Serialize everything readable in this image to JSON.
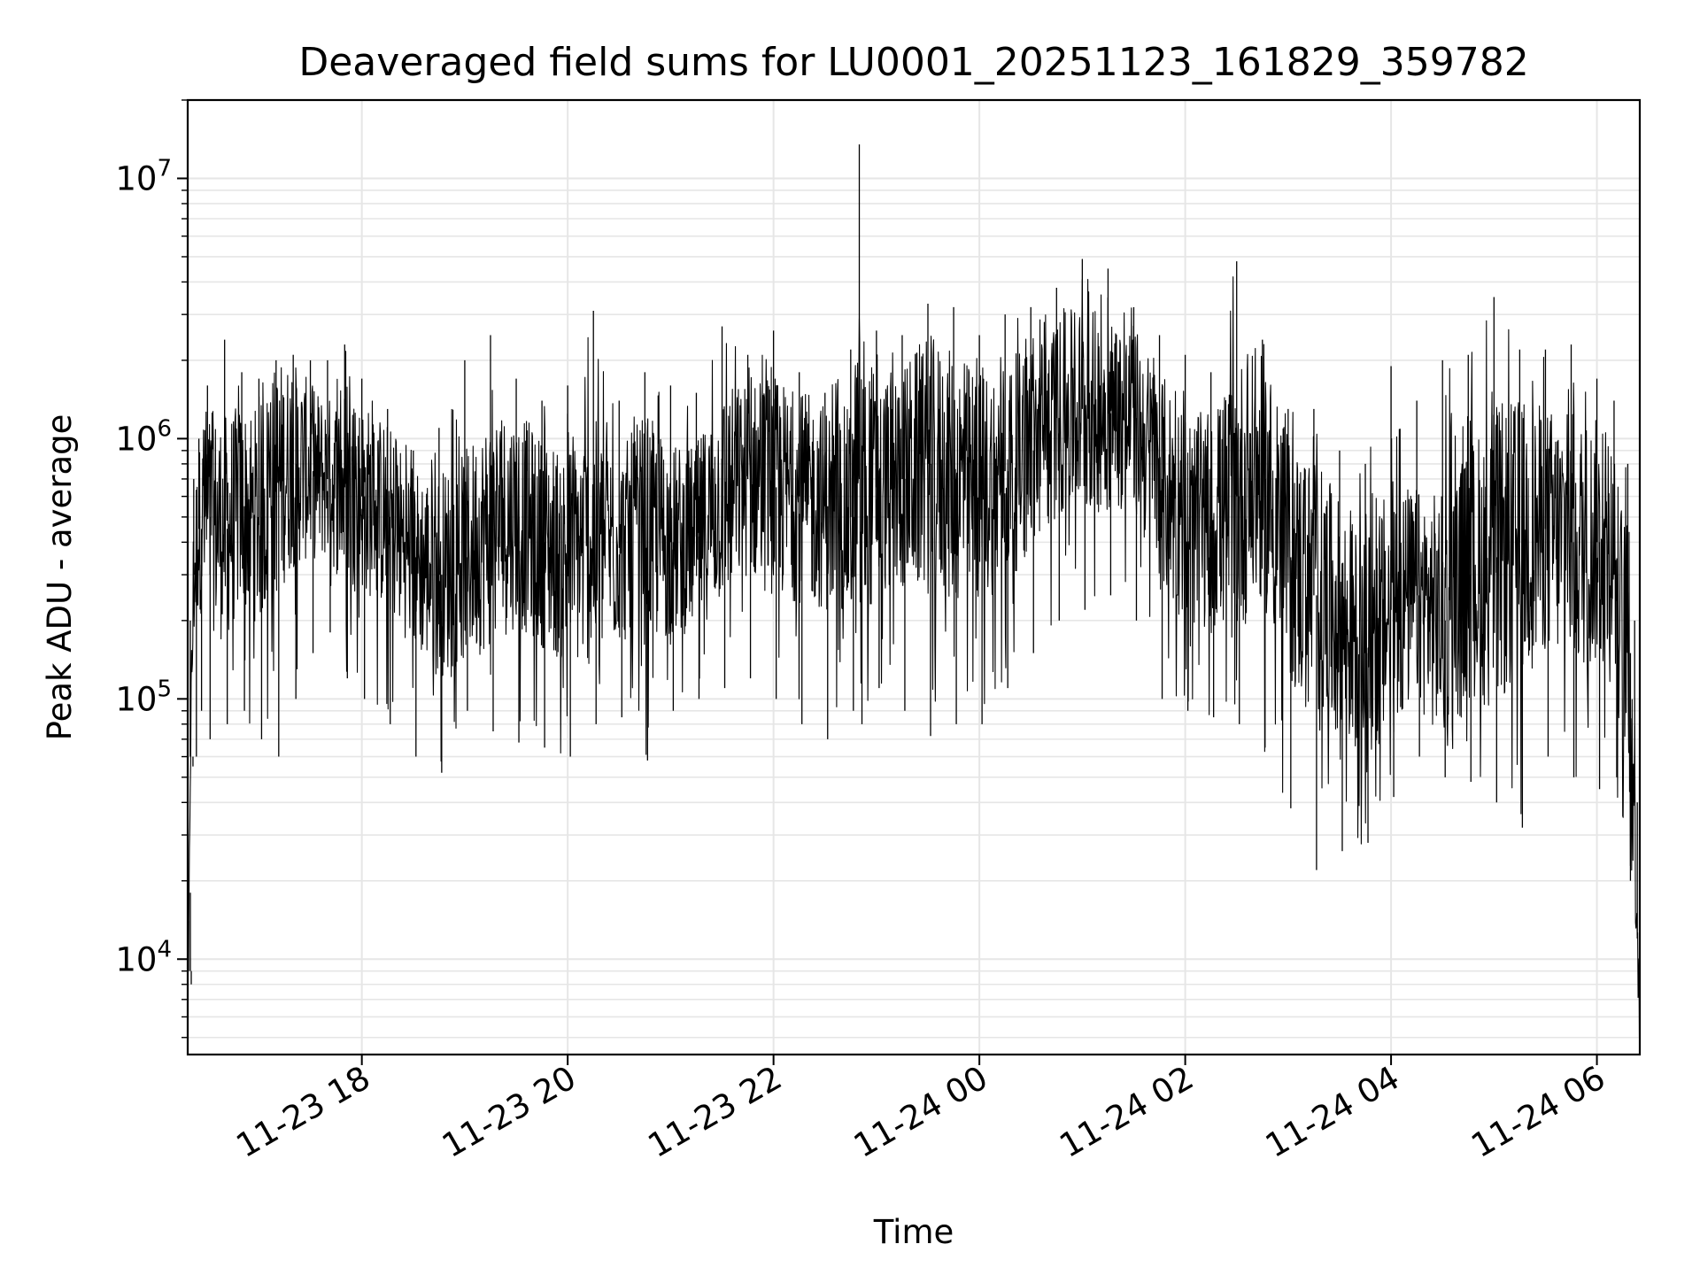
{
  "chart_data": {
    "type": "line",
    "title": "Deaveraged field sums for LU0001_20251123_161829_359782",
    "xlabel": "Time",
    "ylabel": "Peak ADU - average",
    "yscale": "log",
    "ylim": [
      4300,
      20000000
    ],
    "xlim": [
      "2025-11-23 16:18:29",
      "2025-11-24 06:25:00"
    ],
    "grid": true,
    "line_color": "#000000",
    "x_ticks": [
      {
        "t": "2025-11-23 18:00",
        "label": "11-23 18"
      },
      {
        "t": "2025-11-23 20:00",
        "label": "11-23 20"
      },
      {
        "t": "2025-11-23 22:00",
        "label": "11-23 22"
      },
      {
        "t": "2025-11-24 00:00",
        "label": "11-24 00"
      },
      {
        "t": "2025-11-24 02:00",
        "label": "11-24 02"
      },
      {
        "t": "2025-11-24 04:00",
        "label": "11-24 04"
      },
      {
        "t": "2025-11-24 06:00",
        "label": "11-24 06"
      }
    ],
    "y_ticks": [
      {
        "value": 10000,
        "base": "10",
        "exp": "4"
      },
      {
        "value": 100000,
        "base": "10",
        "exp": "5"
      },
      {
        "value": 1000000,
        "base": "10",
        "exp": "6"
      },
      {
        "value": 10000000,
        "base": "10",
        "exp": "7"
      }
    ],
    "series": [
      {
        "x": [
          "2025-11-23 16:18:29",
          "2025-11-23 16:19:00",
          "2025-11-23 16:20:00",
          "2025-11-23 16:22:00",
          "2025-11-23 16:25:00",
          "2025-11-23 16:30:00",
          "2025-11-23 16:40:00",
          "2025-11-23 16:50:00",
          "2025-11-23 17:00:00",
          "2025-11-23 17:10:00",
          "2025-11-23 17:20:00",
          "2025-11-23 17:30:00",
          "2025-11-23 17:40:00",
          "2025-11-23 17:50:00",
          "2025-11-23 18:00:00",
          "2025-11-23 18:15:00",
          "2025-11-23 18:30:00",
          "2025-11-23 18:45:00",
          "2025-11-23 19:00:00",
          "2025-11-23 19:15:00",
          "2025-11-23 19:30:00",
          "2025-11-23 19:45:00",
          "2025-11-23 20:00:00",
          "2025-11-23 20:15:00",
          "2025-11-23 20:30:00",
          "2025-11-23 20:45:00",
          "2025-11-23 21:00:00",
          "2025-11-23 21:15:00",
          "2025-11-23 21:30:00",
          "2025-11-23 21:45:00",
          "2025-11-23 22:00:00",
          "2025-11-23 22:15:00",
          "2025-11-23 22:30:00",
          "2025-11-23 22:45:00",
          "2025-11-23 22:50:00",
          "2025-11-23 23:00:00",
          "2025-11-23 23:15:00",
          "2025-11-23 23:30:00",
          "2025-11-23 23:45:00",
          "2025-11-24 00:00:00",
          "2025-11-24 00:15:00",
          "2025-11-24 00:30:00",
          "2025-11-24 00:45:00",
          "2025-11-24 01:00:00",
          "2025-11-24 01:15:00",
          "2025-11-24 01:30:00",
          "2025-11-24 01:45:00",
          "2025-11-24 02:00:00",
          "2025-11-24 02:15:00",
          "2025-11-24 02:30:00",
          "2025-11-24 02:45:00",
          "2025-11-24 03:00:00",
          "2025-11-24 03:15:00",
          "2025-11-24 03:30:00",
          "2025-11-24 03:45:00",
          "2025-11-24 04:00:00",
          "2025-11-24 04:15:00",
          "2025-11-24 04:30:00",
          "2025-11-24 04:45:00",
          "2025-11-24 05:00:00",
          "2025-11-24 05:15:00",
          "2025-11-24 05:30:00",
          "2025-11-24 05:45:00",
          "2025-11-24 06:00:00",
          "2025-11-24 06:10:00",
          "2025-11-24 06:18:00",
          "2025-11-24 06:22:00",
          "2025-11-24 06:25:00"
        ],
        "y": [
          18000,
          9000,
          60000,
          300000,
          450000,
          500000,
          450000,
          550000,
          500000,
          700000,
          800000,
          750000,
          700000,
          650000,
          600000,
          500000,
          350000,
          300000,
          350000,
          450000,
          500000,
          400000,
          350000,
          400000,
          380000,
          450000,
          400000,
          420000,
          600000,
          700000,
          650000,
          600000,
          550000,
          500000,
          700000,
          650000,
          700000,
          800000,
          700000,
          650000,
          750000,
          900000,
          1200000,
          1300000,
          1250000,
          1200000,
          700000,
          500000,
          450000,
          600000,
          700000,
          350000,
          250000,
          200000,
          150000,
          220000,
          250000,
          200000,
          300000,
          350000,
          400000,
          450000,
          400000,
          400000,
          300000,
          150000,
          40000,
          6000
        ],
        "max": [
          18000,
          14000,
          200000,
          700000,
          1000000,
          1600000,
          2400000,
          1800000,
          1700000,
          2000000,
          2100000,
          2000000,
          2000000,
          2300000,
          1700000,
          1300000,
          900000,
          1100000,
          2000000,
          2500000,
          1700000,
          1400000,
          1600000,
          3100000,
          1400000,
          1800000,
          1600000,
          1500000,
          2700000,
          2100000,
          2600000,
          1800000,
          1500000,
          2200000,
          13500000,
          2600000,
          2500000,
          3300000,
          3200000,
          2500000,
          3000000,
          3200000,
          3800000,
          4900000,
          4500000,
          3200000,
          2500000,
          2100000,
          1800000,
          4800000,
          2400000,
          1300000,
          1300000,
          900000,
          800000,
          1900000,
          1400000,
          2000000,
          2100000,
          3500000,
          2200000,
          2200000,
          2300000,
          1700000,
          1400000,
          800000,
          200000,
          40000
        ],
        "min": [
          9000,
          8000,
          55000,
          60000,
          90000,
          70000,
          80000,
          90000,
          70000,
          60000,
          100000,
          150000,
          180000,
          120000,
          100000,
          80000,
          60000,
          52000,
          90000,
          75000,
          68000,
          65000,
          60000,
          80000,
          85000,
          58000,
          90000,
          100000,
          110000,
          120000,
          100000,
          80000,
          70000,
          90000,
          80000,
          110000,
          90000,
          72000,
          80000,
          80000,
          110000,
          150000,
          200000,
          220000,
          250000,
          200000,
          100000,
          90000,
          85000,
          80000,
          65000,
          38000,
          22000,
          26000,
          28000,
          42000,
          60000,
          50000,
          48000,
          40000,
          32000,
          60000,
          50000,
          45000,
          50000,
          20000,
          12000,
          6000
        ]
      }
    ]
  }
}
